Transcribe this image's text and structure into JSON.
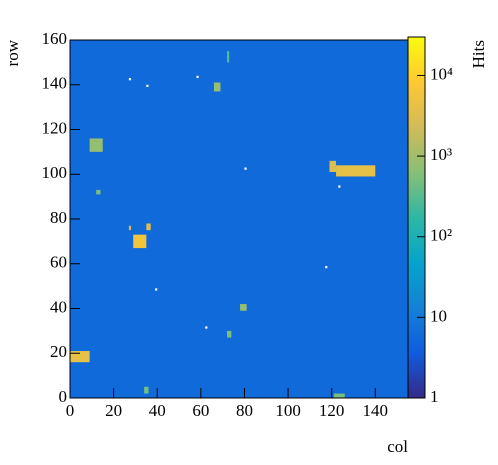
{
  "chart_data": {
    "type": "heatmap",
    "x_label": "col",
    "y_label": "row",
    "z_label": "Hits",
    "xlim": [
      0,
      155
    ],
    "ylim": [
      0,
      160
    ],
    "xticks": [
      0,
      20,
      40,
      60,
      80,
      100,
      120,
      140
    ],
    "yticks": [
      0,
      20,
      40,
      60,
      80,
      100,
      120,
      140,
      160
    ],
    "zlim": [
      1,
      30000
    ],
    "zlog": true,
    "zticks": [
      1,
      10,
      {
        "value": 100,
        "label": "10²"
      },
      {
        "value": 1000,
        "label": "10³"
      },
      {
        "value": 10000,
        "label": "10⁴"
      }
    ],
    "fill_value": 6,
    "cells": [
      {
        "x": [
          29,
          35
        ],
        "y": [
          67,
          73
        ],
        "value": 6000
      },
      {
        "x": [
          35,
          37
        ],
        "y": [
          75,
          78
        ],
        "value": 3000
      },
      {
        "x": [
          27,
          28
        ],
        "y": [
          75,
          77
        ],
        "value": 2000
      },
      {
        "x": [
          0,
          9
        ],
        "y": [
          16,
          21
        ],
        "value": 4000
      },
      {
        "x": [
          9,
          15
        ],
        "y": [
          110,
          116
        ],
        "value": 800
      },
      {
        "x": [
          119,
          122
        ],
        "y": [
          101,
          106
        ],
        "value": 3000
      },
      {
        "x": [
          122,
          140
        ],
        "y": [
          99,
          104
        ],
        "value": 4000
      },
      {
        "x": [
          66,
          69
        ],
        "y": [
          137,
          141
        ],
        "value": 800
      },
      {
        "x": [
          78,
          81
        ],
        "y": [
          39,
          42
        ],
        "value": 800
      },
      {
        "x": [
          12,
          14
        ],
        "y": [
          91,
          93
        ],
        "value": 500
      },
      {
        "x": [
          121,
          126
        ],
        "y": [
          0,
          2
        ],
        "value": 500
      },
      {
        "x": [
          72,
          74
        ],
        "y": [
          27,
          30
        ],
        "value": 500
      },
      {
        "x": [
          34,
          36
        ],
        "y": [
          2,
          5
        ],
        "value": 500
      },
      {
        "x": [
          72,
          73
        ],
        "y": [
          150,
          155
        ],
        "value": 300
      },
      {
        "x": [
          27,
          28
        ],
        "y": [
          142,
          143
        ],
        "value": 0
      },
      {
        "x": [
          35,
          36
        ],
        "y": [
          139,
          140
        ],
        "value": 0
      },
      {
        "x": [
          58,
          59
        ],
        "y": [
          143,
          144
        ],
        "value": 0
      },
      {
        "x": [
          62,
          63
        ],
        "y": [
          31,
          32
        ],
        "value": 0
      },
      {
        "x": [
          39,
          40
        ],
        "y": [
          48,
          49
        ],
        "value": 0
      },
      {
        "x": [
          117,
          118
        ],
        "y": [
          58,
          59
        ],
        "value": 0
      },
      {
        "x": [
          80,
          81
        ],
        "y": [
          102,
          103
        ],
        "value": 0
      },
      {
        "x": [
          123,
          124
        ],
        "y": [
          94,
          95
        ],
        "value": 0
      }
    ]
  }
}
